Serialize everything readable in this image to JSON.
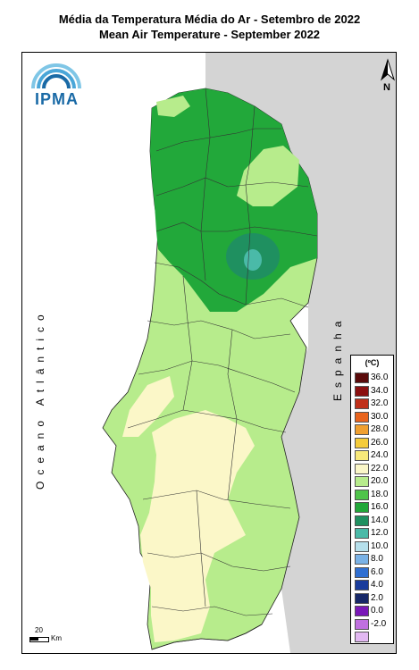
{
  "title_pt": "Média da Temperatura Média do Ar - Setembro de 2022",
  "title_en": "Mean Air Temperature - September 2022",
  "logo_text": "IPMA",
  "north_label": "N",
  "ocean_label": "Oceano Atlântico",
  "spain_label": "Espanha",
  "scale": {
    "value": "20",
    "unit": "Km"
  },
  "legend": {
    "unit": "(ºC)",
    "items": [
      {
        "label": "36.0",
        "color": "#5a0a0a"
      },
      {
        "label": "34.0",
        "color": "#8b1010"
      },
      {
        "label": "32.0",
        "color": "#c0301a"
      },
      {
        "label": "30.0",
        "color": "#e8641e"
      },
      {
        "label": "28.0",
        "color": "#f0a030"
      },
      {
        "label": "26.0",
        "color": "#f5cc3a"
      },
      {
        "label": "24.0",
        "color": "#f8e97a"
      },
      {
        "label": "22.0",
        "color": "#fbf7c8"
      },
      {
        "label": "20.0",
        "color": "#b7ec8c"
      },
      {
        "label": "18.0",
        "color": "#4fc44a"
      },
      {
        "label": "16.0",
        "color": "#22a83a"
      },
      {
        "label": "14.0",
        "color": "#1f9060"
      },
      {
        "label": "12.0",
        "color": "#4abaa8"
      },
      {
        "label": "10.0",
        "color": "#b6e0ec"
      },
      {
        "label": "8.0",
        "color": "#7ab2e6"
      },
      {
        "label": "6.0",
        "color": "#2f6fd2"
      },
      {
        "label": "4.0",
        "color": "#1a3c9c"
      },
      {
        "label": "2.0",
        "color": "#172868"
      },
      {
        "label": "0.0",
        "color": "#7a18b8"
      },
      {
        "label": "-2.0",
        "color": "#c070e0"
      },
      {
        "label": "",
        "color": "#e2b8f2"
      }
    ]
  },
  "map_colors": {
    "land_other": "#d4d4d4",
    "band_18": "#22a83a",
    "band_20": "#b7ec8c",
    "band_22": "#fbf7c8",
    "band_16": "#1f9060",
    "band_14": "#4abaa8"
  }
}
